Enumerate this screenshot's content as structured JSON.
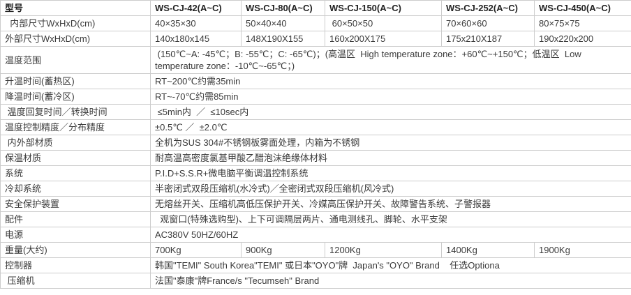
{
  "table": {
    "border_color": "#cccccc",
    "text_color": "#3a3a3a",
    "header": {
      "label": "型号",
      "models": [
        "WS-CJ-42(A~C)",
        "WS-CJ-80(A~C)",
        "WS-CJ-150(A~C)",
        "WS-CJ-252(A~C)",
        "WS-CJ-450(A~C)"
      ]
    },
    "rows": [
      {
        "label": "  内部尺寸WxHxD(cm)",
        "cells": [
          "40×35×30",
          "50×40×40",
          " 60×50×50",
          "70×60×60",
          "80×75×75"
        ]
      },
      {
        "label": "外部尺寸WxHxD(cm)",
        "cells": [
          "140x180x145",
          "148X190X155",
          "160x200X175",
          "175x210X187",
          "190x220x200"
        ]
      },
      {
        "label": "温度范围",
        "value": " (150℃~A: -45℃；B: -55℃；C: -65℃)；(高温区  High temperature zone：+60℃~+150℃；低温区  Low temperature zone：-10℃~-65℃；)"
      },
      {
        "label": "升温时间(蓄热区)",
        "value": "RT~200℃约需35min"
      },
      {
        "label": "降温时间(蓄冷区)",
        "value": "RT~-70℃约需85min"
      },
      {
        "label": " 温度回复时间／转换时间",
        "value": " ≤5min内  ／  ≤10sec内"
      },
      {
        "label": "温度控制精度／分布精度",
        "value": "±0.5℃ ／  ±2.0℃"
      },
      {
        "label": " 内外部材质",
        "value": "全机为SUS 304#不锈钢板雾面处理，内箱为不锈钢"
      },
      {
        "label": "保温材质",
        "value": "耐高温高密度氯基甲酸乙醋泡沫绝缘体材料"
      },
      {
        "label": "系统",
        "value": "P.I.D+S.S.R+微电脑平衡调温控制系统"
      },
      {
        "label": "冷却系统",
        "value": "半密闭式双段压缩机(水冷式)／全密闭式双段压缩机(风冷式)"
      },
      {
        "label": "安全保护装置",
        "value": "无熔丝开关、压缩机高低压保护开关、冷媒高压保护开关、故障警告系统、子警报器"
      },
      {
        "label": "配件",
        "value": "  观窗口(特殊选购型)、上下可调隔层两片、通电测线孔、脚轮、水平支架"
      },
      {
        "label": "电源",
        "value": "AC380V 50HZ/60HZ"
      },
      {
        "label": "重量(大约)",
        "cells": [
          "700Kg",
          "900Kg",
          "1200Kg",
          "1400Kg",
          "1900Kg"
        ]
      },
      {
        "label": "控制器",
        "value": "韩国\"TEMI\" South Korea\"TEMI\" 或日本\"OYO\"牌  Japan's \"OYO\" Brand    任选Optiona"
      },
      {
        "label": " 压缩机",
        "value": "法国\"泰康\"牌France/s \"Tecumseh\" Brand"
      }
    ]
  }
}
